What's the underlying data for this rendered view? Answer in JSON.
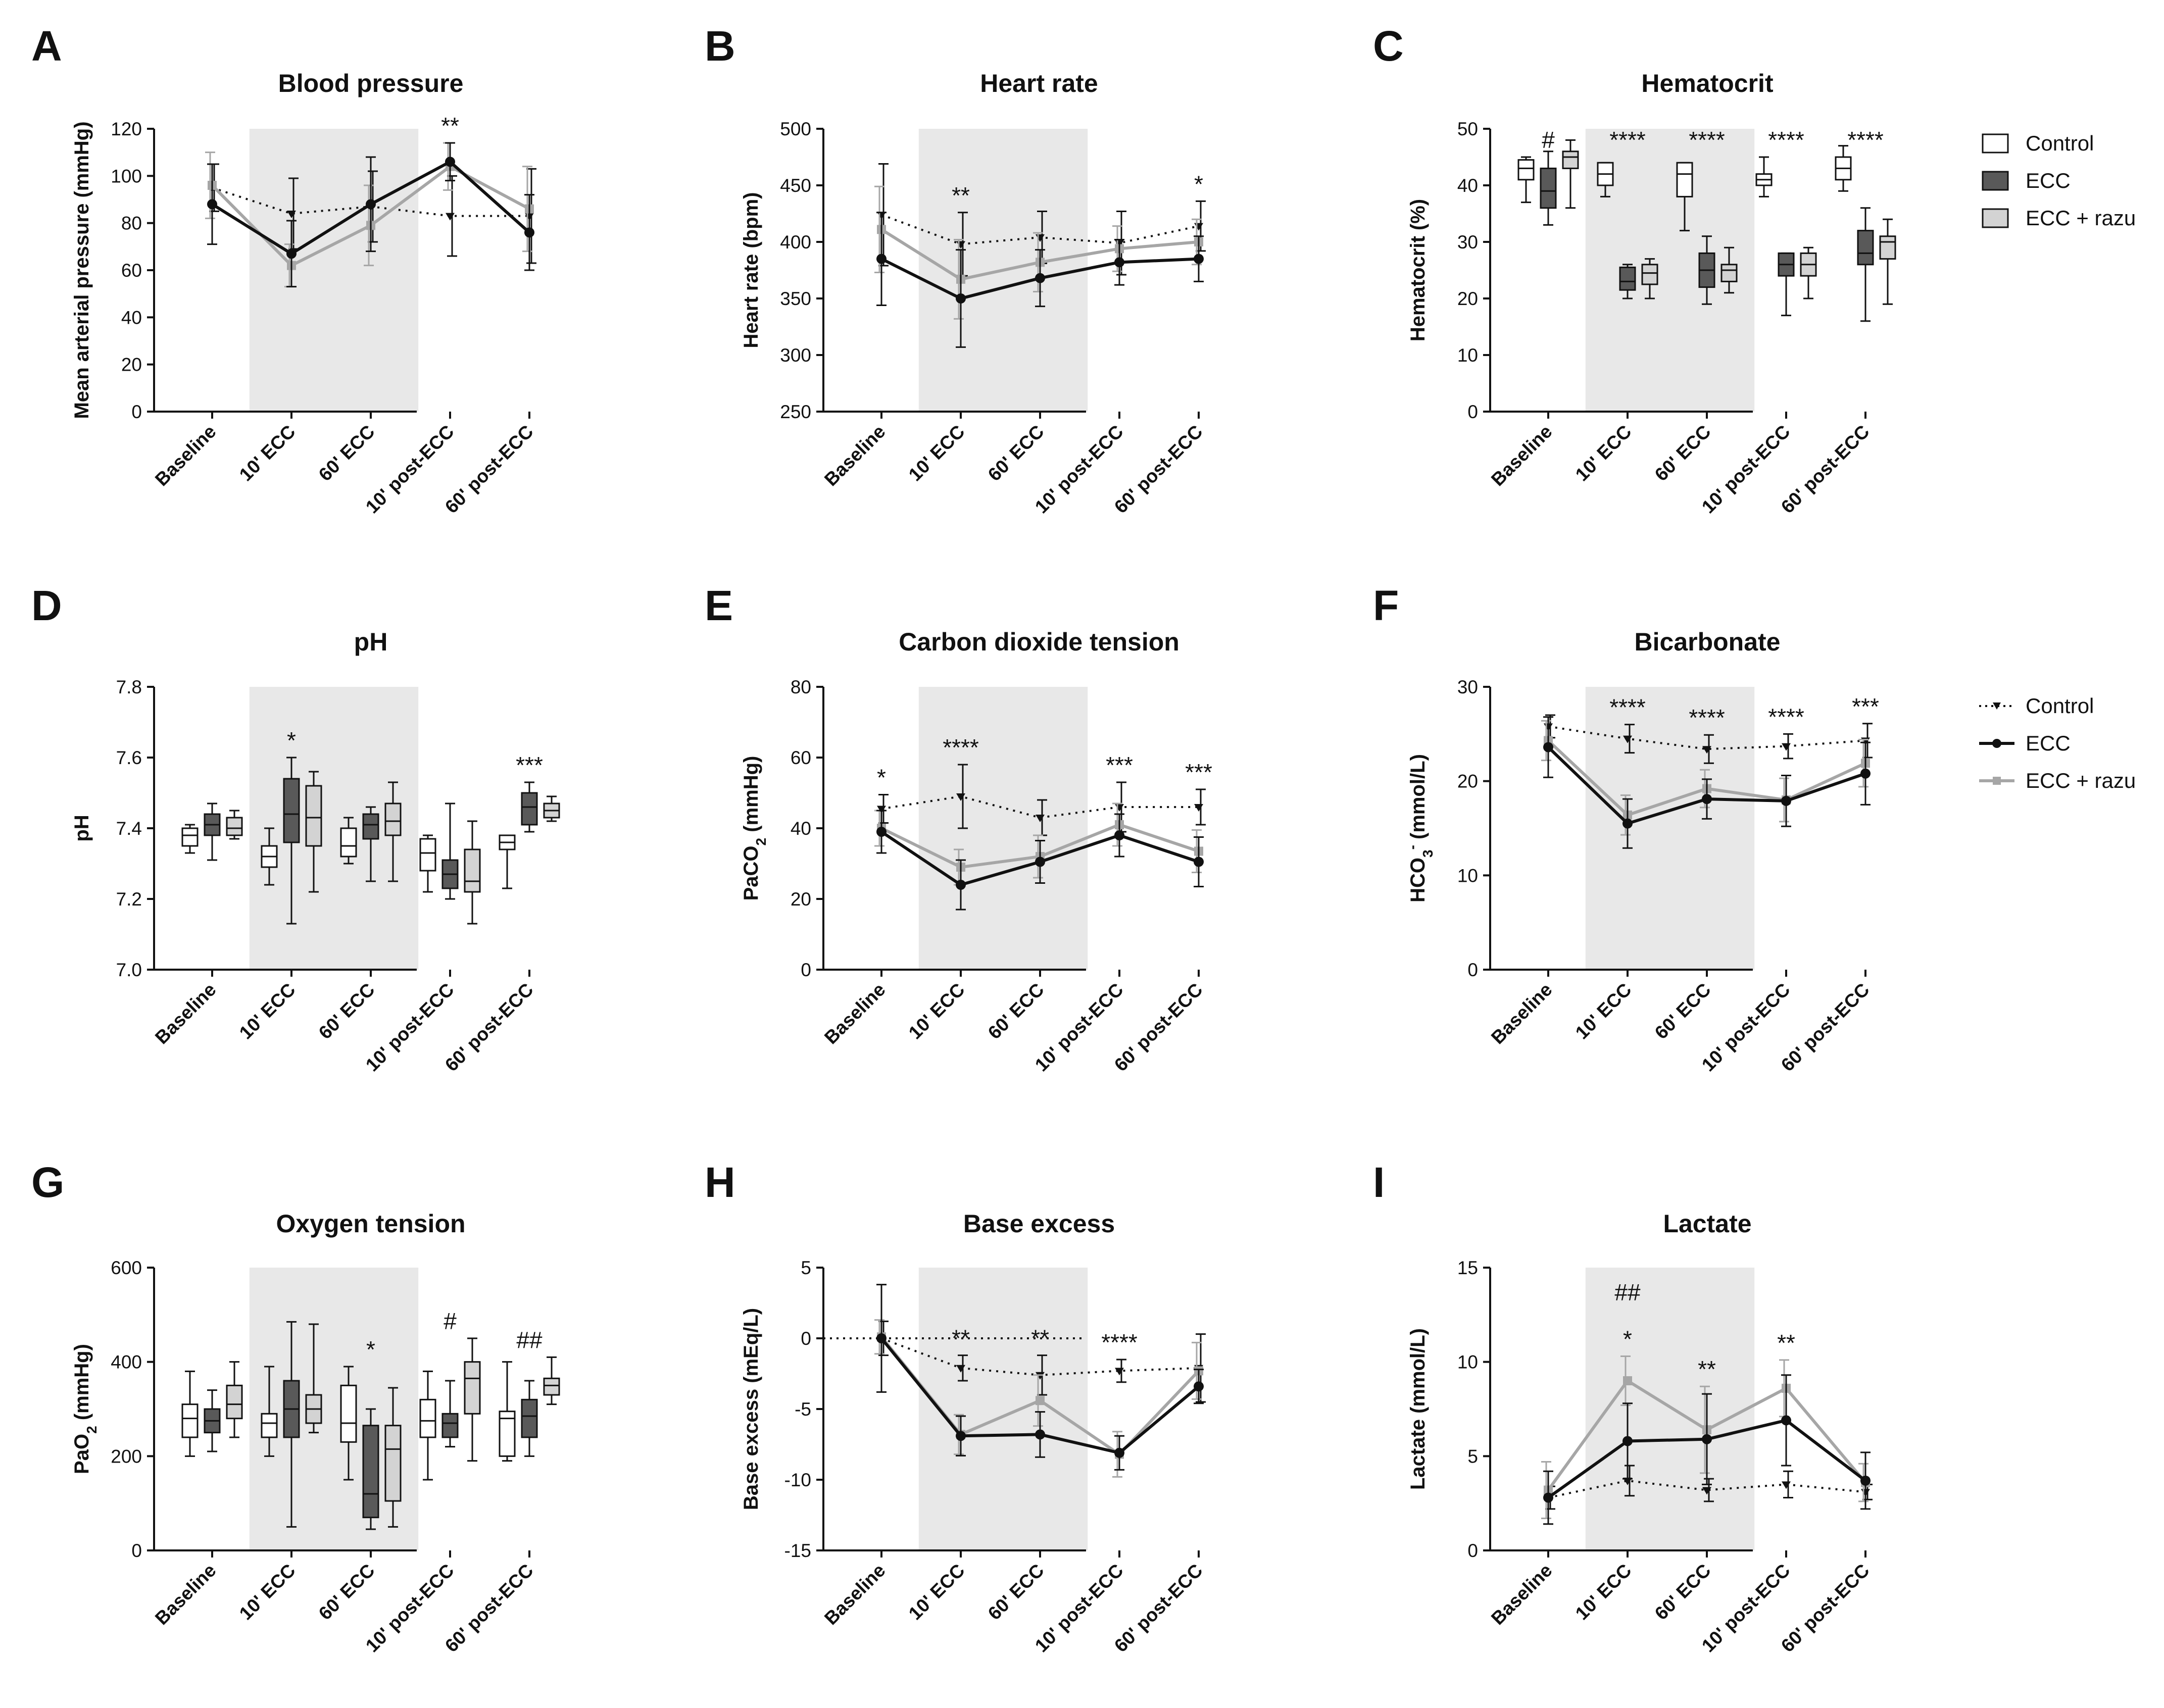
{
  "figure": {
    "legend_boxes": {
      "entries": [
        "Control",
        "ECC",
        "ECC + razu"
      ]
    },
    "legend_lines": {
      "entries": [
        "Control",
        "ECC",
        "ECC + razu"
      ]
    }
  },
  "colors": {
    "control": "#111111",
    "ecc": "#111111",
    "razu": "#a6a6a6",
    "box_control": "#ffffff",
    "box_ecc": "#595959",
    "box_razu": "#d3d3d3",
    "shade": "#e8e8e8"
  },
  "chart_data": [
    {
      "label": "A",
      "title": "Blood pressure",
      "type": "line",
      "ylabel": "Mean arterial pressure (mmHg)",
      "categories": [
        "Baseline",
        "10' ECC",
        "60' ECC",
        "10' post-ECC",
        "60' post-ECC"
      ],
      "ylim": [
        0,
        120
      ],
      "yticks": [
        0,
        20,
        40,
        60,
        80,
        100,
        120
      ],
      "series": [
        {
          "name": "Control",
          "values": [
            95,
            84,
            87,
            83,
            83
          ],
          "err": [
            10,
            15,
            15,
            17,
            20
          ]
        },
        {
          "name": "ECC",
          "values": [
            88,
            67,
            88,
            106,
            76
          ],
          "err": [
            17,
            14,
            20,
            8,
            16
          ]
        },
        {
          "name": "ECC + razu",
          "values": [
            96,
            62,
            79,
            104,
            86
          ],
          "err": [
            14,
            9,
            17,
            10,
            18
          ]
        }
      ],
      "annotations": [
        "",
        "",
        "",
        "**",
        ""
      ]
    },
    {
      "label": "B",
      "title": "Heart rate",
      "type": "line",
      "ylabel": "Heart rate (bpm)",
      "categories": [
        "Baseline",
        "10' ECC",
        "60' ECC",
        "10' post-ECC",
        "60' post-ECC"
      ],
      "ylim": [
        250,
        500
      ],
      "yticks": [
        250,
        300,
        350,
        400,
        450,
        500
      ],
      "series": [
        {
          "name": "Control",
          "values": [
            424,
            398,
            404,
            399,
            414
          ],
          "err": [
            45,
            28,
            23,
            28,
            22
          ]
        },
        {
          "name": "ECC",
          "values": [
            385,
            350,
            368,
            382,
            385
          ],
          "err": [
            41,
            43,
            25,
            20,
            20
          ]
        },
        {
          "name": "ECC + razu",
          "values": [
            411,
            367,
            382,
            394,
            400
          ],
          "err": [
            38,
            35,
            26,
            20,
            20
          ]
        }
      ],
      "annotations": [
        "",
        "**",
        "",
        "",
        "*"
      ]
    },
    {
      "label": "C",
      "title": "Hematocrit",
      "type": "box",
      "ylabel": "Hematocrit (%)",
      "categories": [
        "Baseline",
        "10' ECC",
        "60' ECC",
        "10' post-ECC",
        "60' post-ECC"
      ],
      "ylim": [
        0,
        50
      ],
      "yticks": [
        0,
        10,
        20,
        30,
        40,
        50
      ],
      "groups": [
        [
          {
            "min": 37,
            "q1": 41,
            "median": 43,
            "q3": 44.5,
            "max": 45
          },
          {
            "min": 33,
            "q1": 36,
            "median": 39,
            "q3": 43,
            "max": 46
          },
          {
            "min": 36,
            "q1": 43,
            "median": 45,
            "q3": 46,
            "max": 48
          }
        ],
        [
          {
            "min": 38,
            "q1": 40,
            "median": 42,
            "q3": 44,
            "max": 44
          },
          {
            "min": 20,
            "q1": 21.5,
            "median": 23,
            "q3": 25.5,
            "max": 26
          },
          {
            "min": 20,
            "q1": 22.5,
            "median": 24.5,
            "q3": 26,
            "max": 27
          }
        ],
        [
          {
            "min": 32,
            "q1": 38,
            "median": 42,
            "q3": 44,
            "max": 44
          },
          {
            "min": 19,
            "q1": 22,
            "median": 25,
            "q3": 28,
            "max": 31
          },
          {
            "min": 21,
            "q1": 23,
            "median": 25,
            "q3": 26,
            "max": 29
          }
        ],
        [
          {
            "min": 38,
            "q1": 40,
            "median": 41,
            "q3": 42,
            "max": 45
          },
          {
            "min": 17,
            "q1": 24,
            "median": 26,
            "q3": 28,
            "max": 28
          },
          {
            "min": 20,
            "q1": 24,
            "median": 26,
            "q3": 28,
            "max": 29
          }
        ],
        [
          {
            "min": 39,
            "q1": 41,
            "median": 43,
            "q3": 45,
            "max": 47
          },
          {
            "min": 16,
            "q1": 26,
            "median": 28,
            "q3": 32,
            "max": 36
          },
          {
            "min": 19,
            "q1": 27,
            "median": 30,
            "q3": 31,
            "max": 34
          }
        ]
      ],
      "annotations": [
        "#",
        "****",
        "****",
        "****",
        "****"
      ]
    },
    {
      "label": "D",
      "title": "pH",
      "type": "box",
      "ylabel": "pH",
      "categories": [
        "Baseline",
        "10' ECC",
        "60' ECC",
        "10' post-ECC",
        "60' post-ECC"
      ],
      "ylim": [
        7.0,
        7.8
      ],
      "yticks": [
        7.0,
        7.2,
        7.4,
        7.6,
        7.8
      ],
      "groups": [
        [
          {
            "min": 7.33,
            "q1": 7.35,
            "median": 7.38,
            "q3": 7.4,
            "max": 7.41
          },
          {
            "min": 7.31,
            "q1": 7.38,
            "median": 7.41,
            "q3": 7.44,
            "max": 7.47
          },
          {
            "min": 7.37,
            "q1": 7.38,
            "median": 7.4,
            "q3": 7.43,
            "max": 7.45
          }
        ],
        [
          {
            "min": 7.24,
            "q1": 7.29,
            "median": 7.32,
            "q3": 7.35,
            "max": 7.4
          },
          {
            "min": 7.13,
            "q1": 7.36,
            "median": 7.44,
            "q3": 7.54,
            "max": 7.6
          },
          {
            "min": 7.22,
            "q1": 7.35,
            "median": 7.43,
            "q3": 7.52,
            "max": 7.56
          }
        ],
        [
          {
            "min": 7.3,
            "q1": 7.32,
            "median": 7.35,
            "q3": 7.4,
            "max": 7.43
          },
          {
            "min": 7.25,
            "q1": 7.37,
            "median": 7.41,
            "q3": 7.44,
            "max": 7.46
          },
          {
            "min": 7.25,
            "q1": 7.38,
            "median": 7.42,
            "q3": 7.47,
            "max": 7.53
          }
        ],
        [
          {
            "min": 7.22,
            "q1": 7.28,
            "median": 7.33,
            "q3": 7.37,
            "max": 7.38
          },
          {
            "min": 7.2,
            "q1": 7.23,
            "median": 7.27,
            "q3": 7.31,
            "max": 7.47
          },
          {
            "min": 7.13,
            "q1": 7.22,
            "median": 7.25,
            "q3": 7.34,
            "max": 7.42
          }
        ],
        [
          {
            "min": 7.23,
            "q1": 7.34,
            "median": 7.36,
            "q3": 7.38,
            "max": 7.38
          },
          {
            "min": 7.39,
            "q1": 7.41,
            "median": 7.46,
            "q3": 7.5,
            "max": 7.53
          },
          {
            "min": 7.42,
            "q1": 7.43,
            "median": 7.45,
            "q3": 7.47,
            "max": 7.49
          }
        ]
      ],
      "annotations": [
        "",
        "*",
        "",
        "",
        "***"
      ]
    },
    {
      "label": "E",
      "title": "Carbon dioxide tension",
      "type": "line",
      "ylabel": "PaCO2 (mmHg)",
      "categories": [
        "Baseline",
        "10' ECC",
        "60' ECC",
        "10' post-ECC",
        "60' post-ECC"
      ],
      "ylim": [
        0,
        80
      ],
      "yticks": [
        0,
        20,
        40,
        60,
        80
      ],
      "series": [
        {
          "name": "Control",
          "values": [
            45.5,
            49,
            43,
            46,
            46
          ],
          "err": [
            4,
            9,
            5,
            7,
            5
          ]
        },
        {
          "name": "ECC",
          "values": [
            39,
            24,
            30.5,
            38,
            30.5
          ],
          "err": [
            6,
            7,
            6,
            6,
            7
          ]
        },
        {
          "name": "ECC + razu",
          "values": [
            40,
            29,
            32,
            41,
            33.5
          ],
          "err": [
            5,
            5,
            6,
            6,
            6
          ]
        }
      ],
      "annotations": [
        "*",
        "****",
        "",
        "***",
        "***"
      ]
    },
    {
      "label": "F",
      "title": "Bicarbonate",
      "type": "line",
      "ylabel": "HCO3- (mmol/L)",
      "categories": [
        "Baseline",
        "10' ECC",
        "60' ECC",
        "10' post-ECC",
        "60' post-ECC"
      ],
      "ylim": [
        0,
        30
      ],
      "yticks": [
        0,
        10,
        20,
        30
      ],
      "series": [
        {
          "name": "Control",
          "values": [
            25.8,
            24.5,
            23.4,
            23.7,
            24.3
          ],
          "err": [
            1.2,
            1.5,
            1.5,
            1.3,
            1.8
          ]
        },
        {
          "name": "ECC",
          "values": [
            23.6,
            15.5,
            18.1,
            17.9,
            20.8
          ],
          "err": [
            3.2,
            2.6,
            2.1,
            2.7,
            3.3
          ]
        },
        {
          "name": "ECC + razu",
          "values": [
            24.3,
            16.4,
            19.2,
            18.0,
            21.9
          ],
          "err": [
            2.1,
            2.1,
            2.0,
            2.3,
            2.5
          ]
        }
      ],
      "annotations": [
        "",
        "****",
        "****",
        "****",
        "***"
      ]
    },
    {
      "label": "G",
      "title": "Oxygen tension",
      "type": "box",
      "ylabel": "PaO2 (mmHg)",
      "categories": [
        "Baseline",
        "10' ECC",
        "60' ECC",
        "10' post-ECC",
        "60' post-ECC"
      ],
      "ylim": [
        0,
        600
      ],
      "yticks": [
        0,
        200,
        400,
        600
      ],
      "groups": [
        [
          {
            "min": 200,
            "q1": 240,
            "median": 280,
            "q3": 310,
            "max": 380
          },
          {
            "min": 210,
            "q1": 250,
            "median": 275,
            "q3": 300,
            "max": 340
          },
          {
            "min": 240,
            "q1": 280,
            "median": 310,
            "q3": 350,
            "max": 400
          }
        ],
        [
          {
            "min": 200,
            "q1": 240,
            "median": 270,
            "q3": 290,
            "max": 390
          },
          {
            "min": 50,
            "q1": 240,
            "median": 300,
            "q3": 360,
            "max": 485
          },
          {
            "min": 250,
            "q1": 270,
            "median": 300,
            "q3": 330,
            "max": 480
          }
        ],
        [
          {
            "min": 150,
            "q1": 230,
            "median": 270,
            "q3": 350,
            "max": 390
          },
          {
            "min": 45,
            "q1": 70,
            "median": 120,
            "q3": 265,
            "max": 300
          },
          {
            "min": 50,
            "q1": 105,
            "median": 215,
            "q3": 265,
            "max": 345
          }
        ],
        [
          {
            "min": 150,
            "q1": 240,
            "median": 275,
            "q3": 320,
            "max": 380
          },
          {
            "min": 220,
            "q1": 240,
            "median": 270,
            "q3": 290,
            "max": 360
          },
          {
            "min": 190,
            "q1": 290,
            "median": 365,
            "q3": 400,
            "max": 450
          }
        ],
        [
          {
            "min": 190,
            "q1": 200,
            "median": 280,
            "q3": 295,
            "max": 400
          },
          {
            "min": 200,
            "q1": 240,
            "median": 285,
            "q3": 320,
            "max": 360
          },
          {
            "min": 310,
            "q1": 330,
            "median": 350,
            "q3": 365,
            "max": 410
          }
        ]
      ],
      "annotations": [
        "",
        "",
        "*",
        "#",
        "##"
      ]
    },
    {
      "label": "H",
      "title": "Base excess",
      "type": "line",
      "ylabel": "Base excess (mEq/L)",
      "categories": [
        "Baseline",
        "10' ECC",
        "60' ECC",
        "10' post-ECC",
        "60' post-ECC"
      ],
      "ylim": [
        -15,
        5
      ],
      "yticks": [
        -15,
        -10,
        -5,
        0,
        5
      ],
      "baseline_zero": true,
      "series": [
        {
          "name": "Control",
          "values": [
            0,
            -2.1,
            -2.6,
            -2.3,
            -2.1
          ],
          "err": [
            1.2,
            0.9,
            1.4,
            0.8,
            2.4
          ]
        },
        {
          "name": "ECC",
          "values": [
            0,
            -6.9,
            -6.8,
            -8.1,
            -3.4
          ],
          "err": [
            3.8,
            1.4,
            1.6,
            1.2,
            1.2
          ]
        },
        {
          "name": "ECC + razu",
          "values": [
            0.1,
            -6.8,
            -4.4,
            -8.2,
            -2.3
          ],
          "err": [
            1.2,
            1.4,
            1.8,
            1.6,
            2.0
          ]
        }
      ],
      "annotations": [
        "",
        "**",
        "**",
        "****",
        ""
      ]
    },
    {
      "label": "I",
      "title": "Lactate",
      "type": "line",
      "ylabel": "Lactate (mmol/L)",
      "categories": [
        "Baseline",
        "10' ECC",
        "60' ECC",
        "10' post-ECC",
        "60' post-ECC"
      ],
      "ylim": [
        0,
        15
      ],
      "yticks": [
        0,
        5,
        10,
        15
      ],
      "series": [
        {
          "name": "Control",
          "values": [
            2.8,
            3.7,
            3.2,
            3.5,
            3.1
          ],
          "err": [
            0.6,
            0.8,
            0.6,
            0.7,
            0.4
          ]
        },
        {
          "name": "ECC",
          "values": [
            2.8,
            5.8,
            5.9,
            6.9,
            3.7
          ],
          "err": [
            1.4,
            2.0,
            2.4,
            2.4,
            1.5
          ]
        },
        {
          "name": "ECC + razu",
          "values": [
            3.2,
            9.0,
            6.4,
            8.6,
            3.6
          ],
          "err": [
            1.5,
            1.3,
            2.3,
            1.5,
            1.0
          ]
        }
      ],
      "annotations": [
        "",
        "*",
        "**",
        "**",
        ""
      ],
      "annotations_top": [
        "",
        "##",
        "",
        "",
        ""
      ]
    }
  ]
}
